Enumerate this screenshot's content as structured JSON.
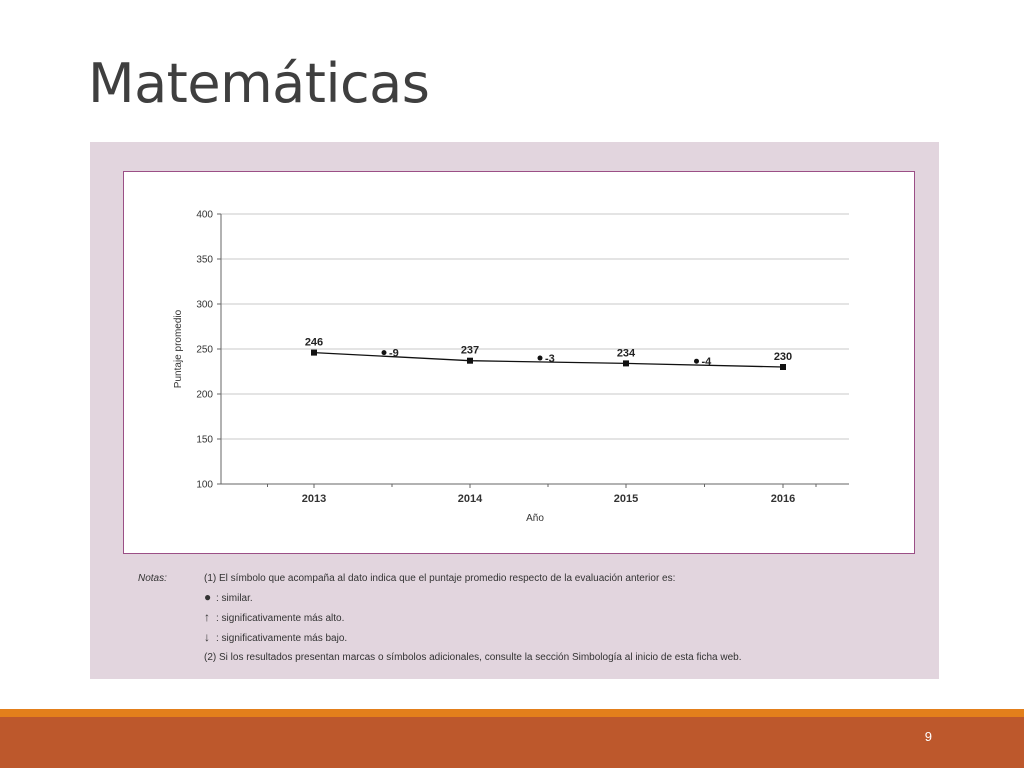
{
  "slide": {
    "title": "Matemáticas",
    "page_number": "9"
  },
  "chart_data": {
    "type": "line",
    "title": "",
    "xlabel": "Año",
    "ylabel": "Puntaje promedio",
    "categories": [
      "2013",
      "2014",
      "2015",
      "2016"
    ],
    "series": [
      {
        "values": [
          246,
          237,
          234,
          230
        ]
      }
    ],
    "data_labels": [
      "246",
      "237",
      "234",
      "230"
    ],
    "ylim": [
      100,
      400
    ],
    "yticks": [
      100,
      150,
      200,
      250,
      300,
      350,
      400
    ],
    "grid": true,
    "legend": "none",
    "differences": [
      {
        "between": [
          "2013",
          "2014"
        ],
        "label": "-9",
        "symbol": "similar"
      },
      {
        "between": [
          "2014",
          "2015"
        ],
        "label": "-3",
        "symbol": "similar"
      },
      {
        "between": [
          "2015",
          "2016"
        ],
        "label": "-4",
        "symbol": "similar"
      }
    ],
    "colors": {
      "line": "#111111",
      "grid": "#c8c8c8",
      "frame": "#9b4f86"
    }
  },
  "notes": {
    "label": "Notas:",
    "line1": "(1) El símbolo que acompaña al dato indica que el puntaje promedio respecto de la evaluación anterior es:",
    "similar_symbol": "●",
    "similar_text": ": similar.",
    "up_symbol": "↑",
    "up_text": ": significativamente más alto.",
    "down_symbol": "↓",
    "down_text": ": significativamente más bajo.",
    "line2": "(2) Si los resultados presentan marcas o símbolos adicionales, consulte la sección Simbología al inicio de esta ficha web."
  },
  "colors": {
    "panel_bg": "#e2d5de",
    "accent_strip": "#e37f1b",
    "footer_bar": "#bd582c"
  }
}
